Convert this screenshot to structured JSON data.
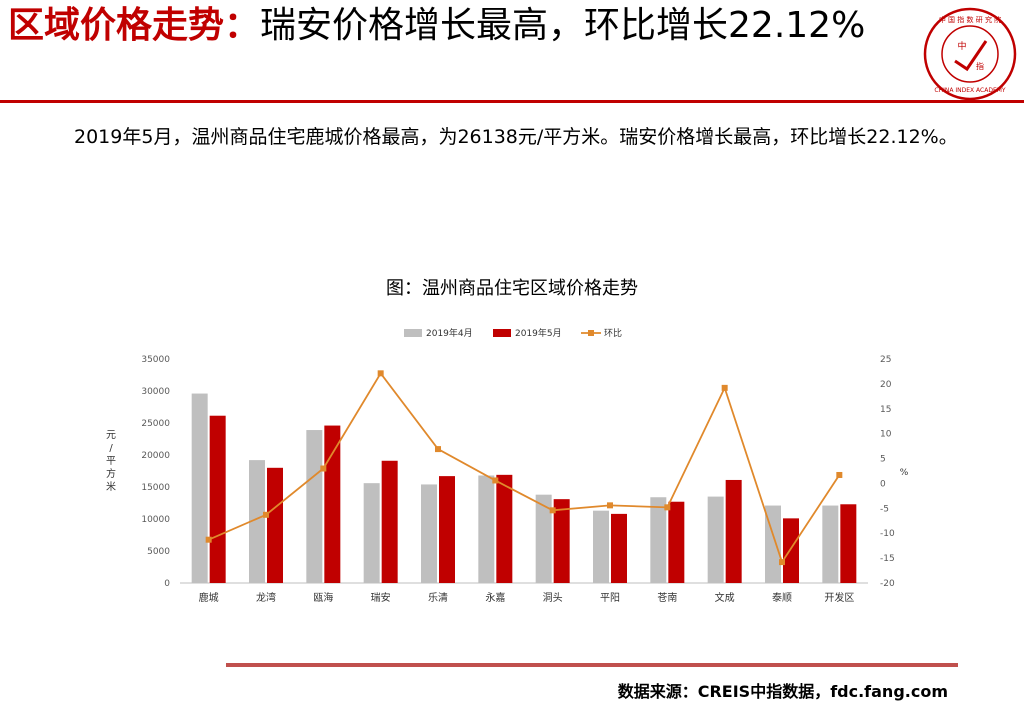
{
  "header": {
    "title_red": "区域价格走势：",
    "title_rest": "瑞安价格增长最高，环比增长22.12%"
  },
  "logo": {
    "text_top": "中 国 指 数 研 究 院",
    "text_bottom": "CHINA INDEX ACADEMY",
    "center_top": "中",
    "center_bottom": "指"
  },
  "body_text": "2019年5月，温州商品住宅鹿城价格最高，为26138元/平方米。瑞安价格增长最高，环比增长22.12%。",
  "colors": {
    "apr": "#bfbfbf",
    "may": "#c00000",
    "mom": "#e0892c",
    "accent": "#c00000"
  },
  "chart_data": {
    "type": "bar",
    "title": "图：温州商品住宅区域价格走势",
    "categories": [
      "鹿城",
      "龙湾",
      "瓯海",
      "瑞安",
      "乐清",
      "永嘉",
      "洞头",
      "平阳",
      "苍南",
      "文成",
      "泰顺",
      "开发区"
    ],
    "series": [
      {
        "name": "2019年4月",
        "type": "bar",
        "axis": "left",
        "values": [
          29600,
          19200,
          23900,
          15600,
          15400,
          16800,
          13800,
          11300,
          13400,
          13500,
          12100,
          12100
        ]
      },
      {
        "name": "2019年5月",
        "type": "bar",
        "axis": "left",
        "values": [
          26138,
          18000,
          24600,
          19100,
          16700,
          16900,
          13100,
          10800,
          12700,
          16100,
          10100,
          12300
        ]
      },
      {
        "name": "环比",
        "type": "line",
        "axis": "right",
        "values": [
          -11.3,
          -6.3,
          3.0,
          22.12,
          6.9,
          0.6,
          -5.4,
          -4.4,
          -4.8,
          19.2,
          -15.8,
          1.7
        ]
      }
    ],
    "ylabel": "元/平方米",
    "y2label": "%",
    "ylim": [
      0,
      35000
    ],
    "y2lim": [
      -20,
      25
    ],
    "yticks": [
      "0",
      "5000",
      "10000",
      "15000",
      "20000",
      "25000",
      "30000",
      "35000"
    ],
    "y2ticks": [
      "-20",
      "-15",
      "-10",
      "-5",
      "0",
      "5",
      "10",
      "15",
      "20",
      "25"
    ],
    "legend": "top-center",
    "grid": false
  },
  "footer": {
    "source": "数据来源：CREIS中指数据，fdc.fang.com"
  }
}
